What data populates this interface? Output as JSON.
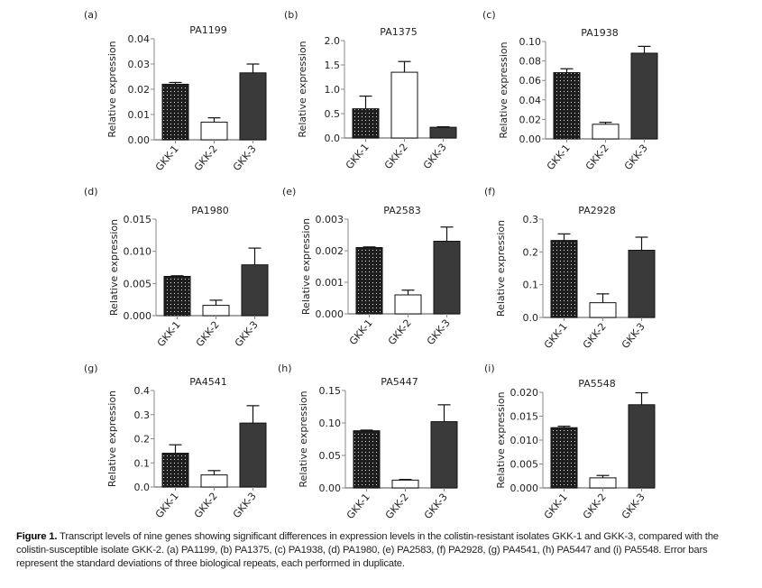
{
  "chart_data": [
    {
      "type": "bar",
      "panel": "(a)",
      "title": "PA1199",
      "ylabel": "Relative expression",
      "categories": [
        "GKK-1",
        "GKK-2",
        "GKK-3"
      ],
      "values": [
        0.022,
        0.007,
        0.0265
      ],
      "errors": [
        0.0007,
        0.0017,
        0.0035
      ],
      "ylim": [
        0,
        0.04
      ],
      "yticks": [
        0,
        0.01,
        0.02,
        0.03,
        0.04
      ],
      "ytick_labels": [
        "0.00",
        "0.01",
        "0.02",
        "0.03",
        "0.04"
      ]
    },
    {
      "type": "bar",
      "panel": "(b)",
      "title": "PA1375",
      "ylabel": "Relative expression",
      "categories": [
        "GKK-1",
        "GKK-2",
        "GKK-3"
      ],
      "values": [
        0.6,
        1.35,
        0.22
      ],
      "errors": [
        0.26,
        0.22,
        0.01
      ],
      "ylim": [
        0,
        2.0
      ],
      "yticks": [
        0,
        0.5,
        1.0,
        1.5,
        2.0
      ],
      "ytick_labels": [
        "0.0",
        "0.5",
        "1.0",
        "1.5",
        "2.0"
      ]
    },
    {
      "type": "bar",
      "panel": "(c)",
      "title": "PA1938",
      "ylabel": "Relative expression",
      "categories": [
        "GKK-1",
        "GKK-2",
        "GKK-3"
      ],
      "values": [
        0.068,
        0.015,
        0.088
      ],
      "errors": [
        0.004,
        0.002,
        0.007
      ],
      "ylim": [
        0,
        0.1
      ],
      "yticks": [
        0,
        0.02,
        0.04,
        0.06,
        0.08,
        0.1
      ],
      "ytick_labels": [
        "0.00",
        "0.02",
        "0.04",
        "0.06",
        "0.08",
        "0.10"
      ]
    },
    {
      "type": "bar",
      "panel": "(d)",
      "title": "PA1980",
      "ylabel": "Relative expression",
      "categories": [
        "GKK-1",
        "GKK-2",
        "GKK-3"
      ],
      "values": [
        0.0061,
        0.0016,
        0.0079
      ],
      "errors": [
        0.0001,
        0.0008,
        0.0026
      ],
      "ylim": [
        0,
        0.015
      ],
      "yticks": [
        0,
        0.005,
        0.01,
        0.015
      ],
      "ytick_labels": [
        "0.000",
        "0.005",
        "0.010",
        "0.015"
      ]
    },
    {
      "type": "bar",
      "panel": "(e)",
      "title": "PA2583",
      "ylabel": "Relative expression",
      "categories": [
        "GKK-1",
        "GKK-2",
        "GKK-3"
      ],
      "values": [
        0.0021,
        0.0006,
        0.0023
      ],
      "errors": [
        2e-05,
        0.00015,
        0.00045
      ],
      "ylim": [
        0,
        0.003
      ],
      "yticks": [
        0,
        0.001,
        0.002,
        0.003
      ],
      "ytick_labels": [
        "0.000",
        "0.001",
        "0.002",
        "0.003"
      ]
    },
    {
      "type": "bar",
      "panel": "(f)",
      "title": "PA2928",
      "ylabel": "Relative expression",
      "categories": [
        "GKK-1",
        "GKK-2",
        "GKK-3"
      ],
      "values": [
        0.235,
        0.045,
        0.205
      ],
      "errors": [
        0.02,
        0.027,
        0.04
      ],
      "ylim": [
        0,
        0.3
      ],
      "yticks": [
        0,
        0.1,
        0.2,
        0.3
      ],
      "ytick_labels": [
        "0.0",
        "0.1",
        "0.2",
        "0.3"
      ]
    },
    {
      "type": "bar",
      "panel": "(g)",
      "title": "PA4541",
      "ylabel": "Relative expression",
      "categories": [
        "GKK-1",
        "GKK-2",
        "GKK-3"
      ],
      "values": [
        0.14,
        0.05,
        0.265
      ],
      "errors": [
        0.035,
        0.018,
        0.072
      ],
      "ylim": [
        0,
        0.4
      ],
      "yticks": [
        0,
        0.1,
        0.2,
        0.3,
        0.4
      ],
      "ytick_labels": [
        "0.0",
        "0.1",
        "0.2",
        "0.3",
        "0.4"
      ]
    },
    {
      "type": "bar",
      "panel": "(h)",
      "title": "PA5447",
      "ylabel": "Relative expression",
      "categories": [
        "GKK-1",
        "GKK-2",
        "GKK-3"
      ],
      "values": [
        0.088,
        0.012,
        0.102
      ],
      "errors": [
        0.001,
        0.001,
        0.026
      ],
      "ylim": [
        0,
        0.15
      ],
      "yticks": [
        0,
        0.05,
        0.1,
        0.15
      ],
      "ytick_labels": [
        "0.00",
        "0.05",
        "0.10",
        "0.15"
      ]
    },
    {
      "type": "bar",
      "panel": "(i)",
      "title": "PA5548",
      "ylabel": "Relative expression",
      "categories": [
        "GKK-1",
        "GKK-2",
        "GKK-3"
      ],
      "values": [
        0.0126,
        0.0021,
        0.0174
      ],
      "errors": [
        0.0003,
        0.0005,
        0.0025
      ],
      "ylim": [
        0,
        0.02
      ],
      "yticks": [
        0,
        0.005,
        0.01,
        0.015,
        0.02
      ],
      "ytick_labels": [
        "0.000",
        "0.005",
        "0.010",
        "0.015",
        "0.020"
      ]
    }
  ],
  "colors": {
    "gkk1": "#1e1e1e",
    "gkk2": "#ffffff",
    "gkk3": "#3a3a3a",
    "axis": "#888888"
  },
  "caption": {
    "label": "Figure 1.",
    "text": "Transcript levels of nine genes showing significant differences in expression levels in the colistin-resistant isolates GKK-1 and GKK-3, compared with the colistin-susceptible isolate GKK-2. (a) PA1199, (b) PA1375, (c) PA1938, (d) PA1980, (e) PA2583, (f) PA2928, (g) PA4541, (h) PA5447 and (i) PA5548. Error bars represent the standard deviations of three biological repeats, each performed in duplicate."
  }
}
